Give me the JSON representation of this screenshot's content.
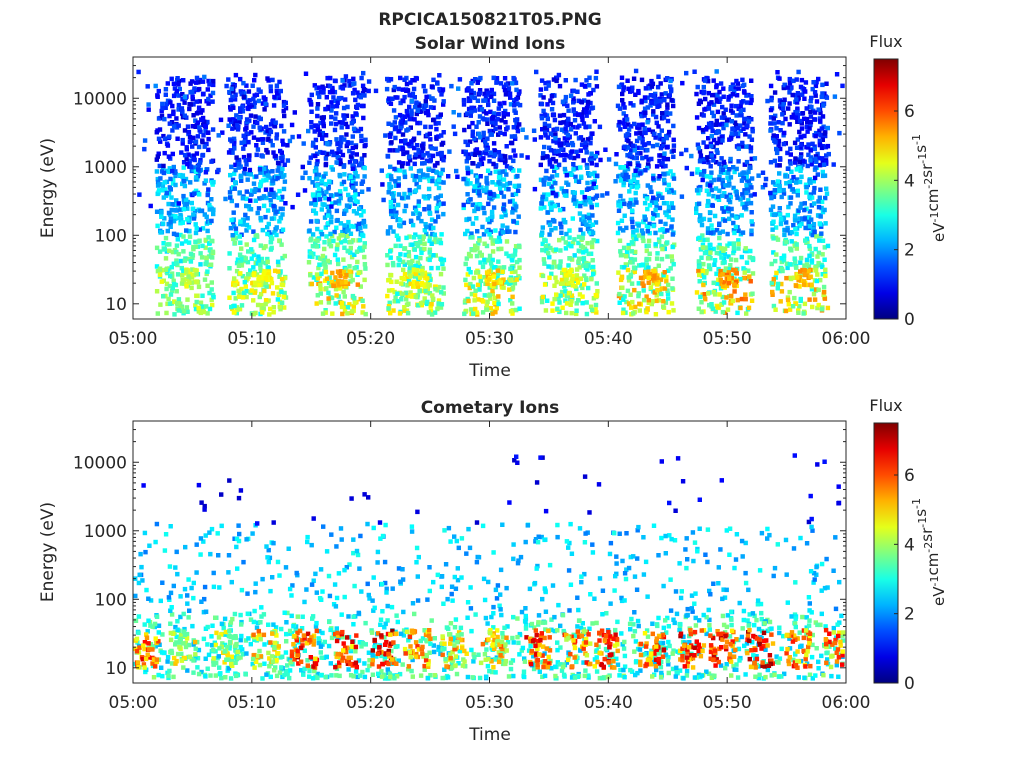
{
  "figure_title": "RPCICA150821T05.PNG",
  "chart_data": [
    {
      "type": "heatmap",
      "title": "Solar Wind Ions",
      "xlabel": "Time",
      "ylabel": "Energy (eV)",
      "x_ticks": [
        "05:00",
        "05:10",
        "05:20",
        "05:30",
        "05:40",
        "05:50",
        "06:00"
      ],
      "xlim": [
        "05:00",
        "06:00"
      ],
      "y_ticks": [
        10,
        100,
        1000,
        10000
      ],
      "y_tick_labels": [
        "10",
        "100",
        "1000",
        "10000"
      ],
      "ylim": [
        6,
        40000
      ],
      "yscale": "log",
      "colorbar": {
        "title": "Flux",
        "label": "eV-1cm-2sr-1s-1",
        "range": [
          0,
          7.5
        ],
        "ticks": [
          0,
          2,
          4,
          6
        ],
        "colormap": "jet"
      },
      "bursts": [
        {
          "t": 4.2,
          "flux": 4.6
        },
        {
          "t": 10.3,
          "flux": 5.0
        },
        {
          "t": 17.0,
          "flux": 5.6
        },
        {
          "t": 23.6,
          "flux": 5.0
        },
        {
          "t": 30.0,
          "flux": 5.3
        },
        {
          "t": 36.5,
          "flux": 4.9
        },
        {
          "t": 43.0,
          "flux": 5.6
        },
        {
          "t": 49.6,
          "flux": 5.9
        },
        {
          "t": 55.9,
          "flux": 5.6
        }
      ]
    },
    {
      "type": "heatmap",
      "title": "Cometary Ions",
      "xlabel": "Time",
      "ylabel": "Energy (eV)",
      "x_ticks": [
        "05:00",
        "05:10",
        "05:20",
        "05:30",
        "05:40",
        "05:50",
        "06:00"
      ],
      "xlim": [
        "05:00",
        "06:00"
      ],
      "y_ticks": [
        10,
        100,
        1000,
        10000
      ],
      "y_tick_labels": [
        "10",
        "100",
        "1000",
        "10000"
      ],
      "ylim": [
        6,
        40000
      ],
      "yscale": "log",
      "colorbar": {
        "title": "Flux",
        "label": "eV-1cm-2sr-1s-1",
        "range": [
          0,
          7.5
        ],
        "ticks": [
          0,
          2,
          4,
          6
        ],
        "colormap": "jet"
      },
      "hot_spots": [
        {
          "t": 1.0,
          "flux": 6.8
        },
        {
          "t": 4.0,
          "flux": 5.2
        },
        {
          "t": 7.6,
          "flux": 5.0
        },
        {
          "t": 11.0,
          "flux": 5.9
        },
        {
          "t": 14.2,
          "flux": 7.3
        },
        {
          "t": 17.8,
          "flux": 7.1
        },
        {
          "t": 21.0,
          "flux": 7.4
        },
        {
          "t": 23.8,
          "flux": 6.3
        },
        {
          "t": 26.8,
          "flux": 5.9
        },
        {
          "t": 30.2,
          "flux": 6.1
        },
        {
          "t": 33.9,
          "flux": 7.2
        },
        {
          "t": 37.2,
          "flux": 6.5
        },
        {
          "t": 39.6,
          "flux": 7.0
        },
        {
          "t": 43.4,
          "flux": 7.1
        },
        {
          "t": 46.8,
          "flux": 7.2
        },
        {
          "t": 49.5,
          "flux": 7.3
        },
        {
          "t": 52.6,
          "flux": 7.5
        },
        {
          "t": 55.8,
          "flux": 6.8
        },
        {
          "t": 59.2,
          "flux": 6.6
        }
      ]
    }
  ]
}
